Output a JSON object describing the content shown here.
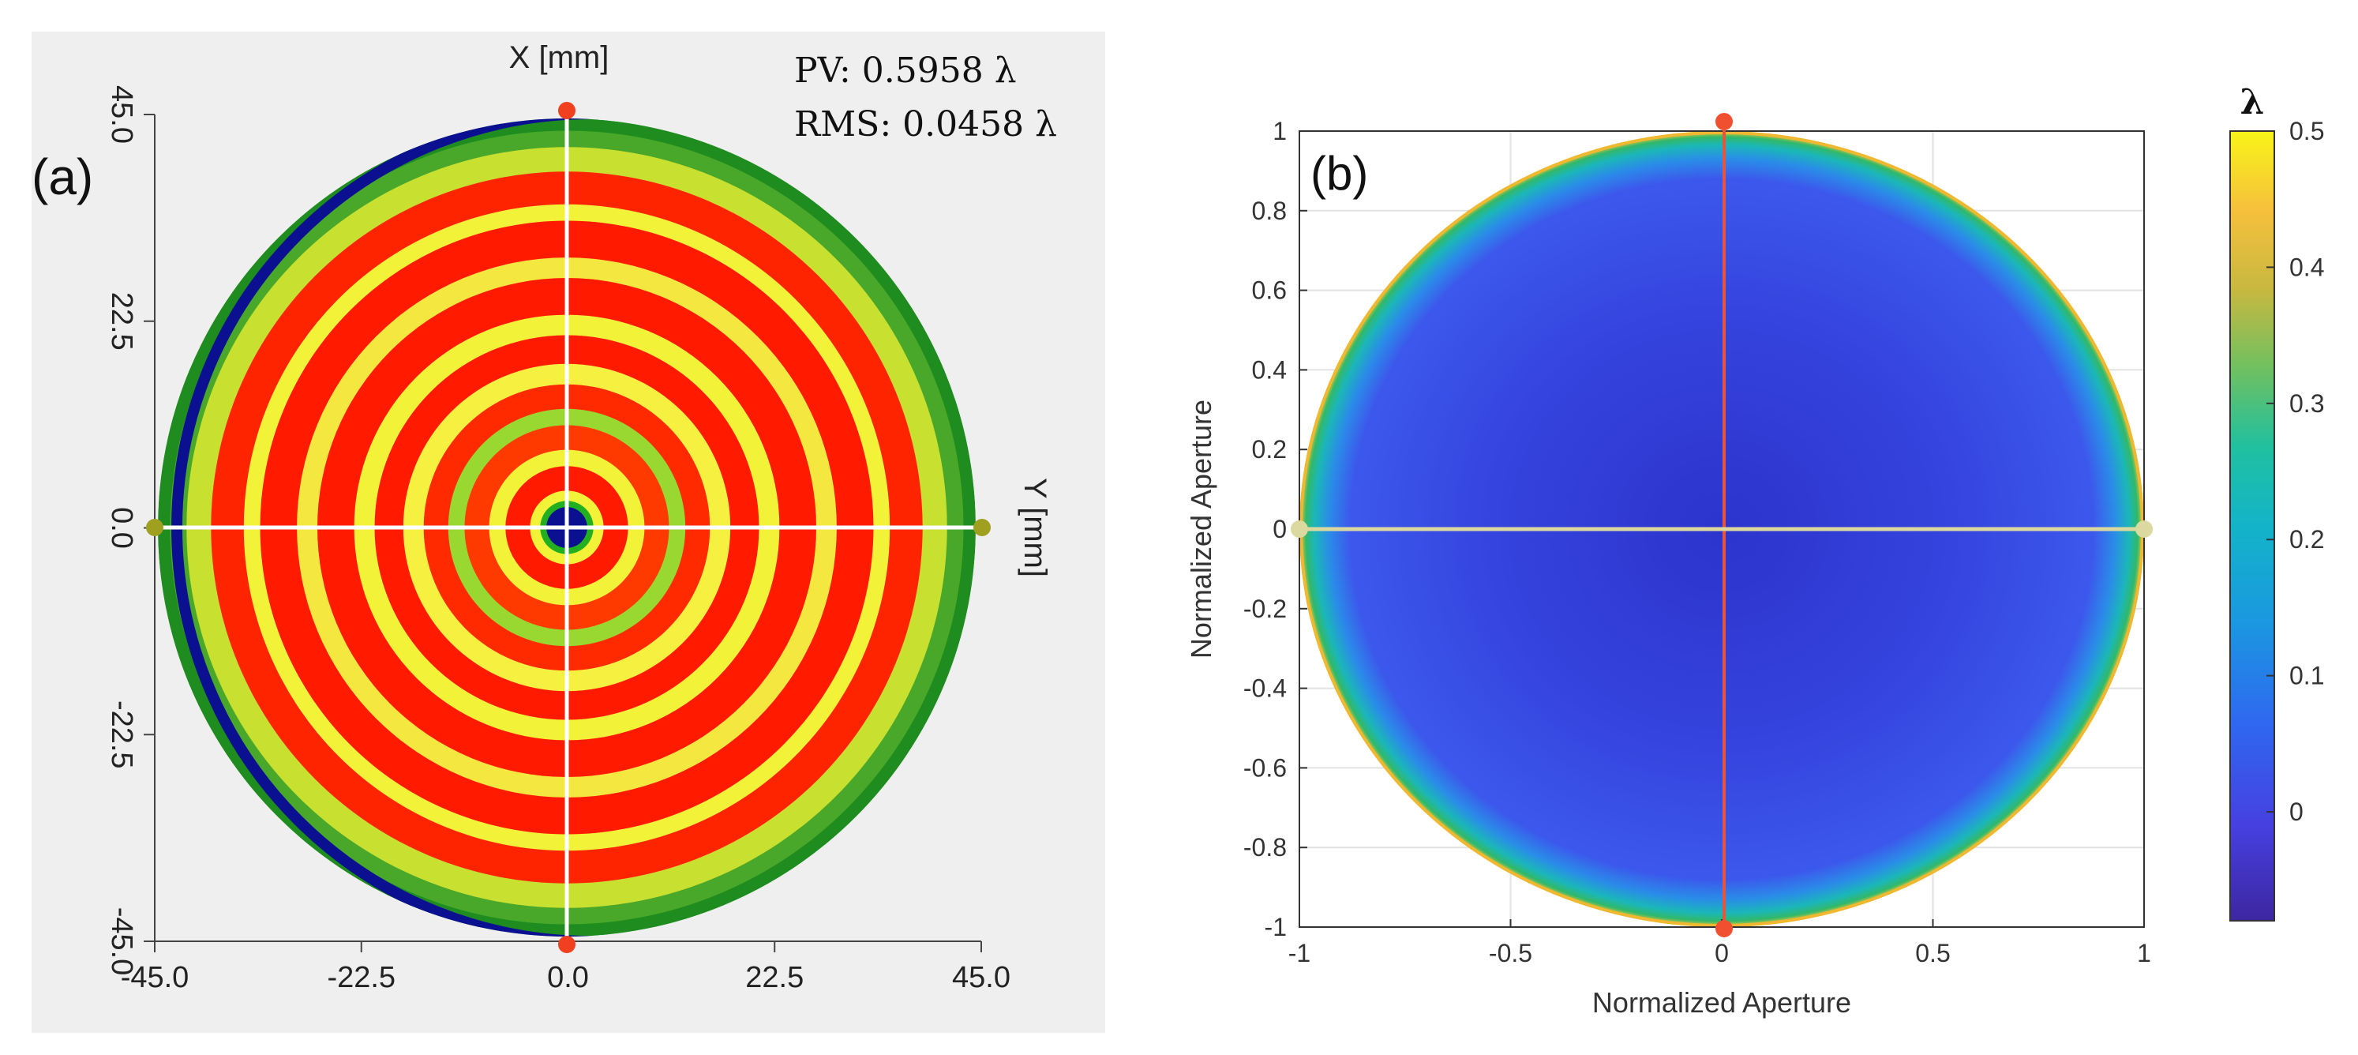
{
  "figure": {
    "panel_a": {
      "label": "(a)",
      "pv_text": "PV: 0.5958 λ",
      "rms_text": "RMS: 0.0458 λ"
    },
    "panel_b": {
      "label": "(b)",
      "colorbar_title": "λ"
    }
  },
  "colors": {
    "panel_a_background": "#efefef",
    "red": "#ff1a00",
    "yellow": "#f2f238",
    "green": "#1e8c1e",
    "deep_blue": "#0a1090",
    "marker_red": "#f04020",
    "marker_olive": "#a0a020",
    "line_red": "#e8553a",
    "line_tan": "#dcd9a0"
  },
  "chart_data": [
    {
      "type": "heatmap",
      "title": "",
      "xlabel": "X [mm]",
      "ylabel": "Y [mm]",
      "xlim": [
        -45.0,
        45.0
      ],
      "ylim": [
        -45.0,
        45.0
      ],
      "x_ticks": [
        "-45.0",
        "-22.5",
        "0.0",
        "22.5",
        "45.0"
      ],
      "y_ticks": [
        "45.0",
        "22.5",
        "0.0",
        "-22.5",
        "-45.0"
      ],
      "pv": 0.5958,
      "rms": 0.0458,
      "unit": "λ",
      "rings": [
        {
          "r": 1.0,
          "c": "#1e8c1e"
        },
        {
          "r": 0.97,
          "c": "#49a82a"
        },
        {
          "r": 0.93,
          "c": "#c8e030"
        },
        {
          "r": 0.87,
          "c": "#ff2400"
        },
        {
          "r": 0.79,
          "c": "#f2f238"
        },
        {
          "r": 0.75,
          "c": "#ff1a00"
        },
        {
          "r": 0.66,
          "c": "#f4e840"
        },
        {
          "r": 0.61,
          "c": "#ff1a00"
        },
        {
          "r": 0.52,
          "c": "#f2f238"
        },
        {
          "r": 0.47,
          "c": "#ff1a00"
        },
        {
          "r": 0.4,
          "c": "#f6f040"
        },
        {
          "r": 0.35,
          "c": "#ff2a00"
        },
        {
          "r": 0.29,
          "c": "#98d830"
        },
        {
          "r": 0.25,
          "c": "#ff3a00"
        },
        {
          "r": 0.19,
          "c": "#f2f238"
        },
        {
          "r": 0.15,
          "c": "#ff1a00"
        },
        {
          "r": 0.09,
          "c": "#f2f238"
        },
        {
          "r": 0.065,
          "c": "#22b020"
        },
        {
          "r": 0.05,
          "c": "#0a1090"
        }
      ]
    },
    {
      "type": "heatmap",
      "title": "",
      "xlabel": "Normalized Aperture",
      "ylabel": "Normalized Aperture",
      "xlim": [
        -1,
        1
      ],
      "ylim": [
        -1,
        1
      ],
      "x_ticks": [
        "-1",
        "-0.5",
        "0",
        "0.5",
        "1"
      ],
      "y_ticks": [
        "1",
        "0.8",
        "0.6",
        "0.4",
        "0.2",
        "0",
        "-0.2",
        "-0.4",
        "-0.6",
        "-0.8",
        "-1"
      ],
      "colorbar": {
        "label": "λ",
        "range": [
          -0.08,
          0.5
        ],
        "ticks": [
          "0.5",
          "0.4",
          "0.3",
          "0.2",
          "0.1",
          "0"
        ]
      },
      "radial_profile": [
        {
          "r": 0.0,
          "v": -0.06
        },
        {
          "r": 0.6,
          "v": -0.04
        },
        {
          "r": 0.9,
          "v": -0.02
        },
        {
          "r": 0.95,
          "v": 0.05
        },
        {
          "r": 0.98,
          "v": 0.2
        },
        {
          "r": 1.0,
          "v": 0.45
        }
      ]
    }
  ]
}
